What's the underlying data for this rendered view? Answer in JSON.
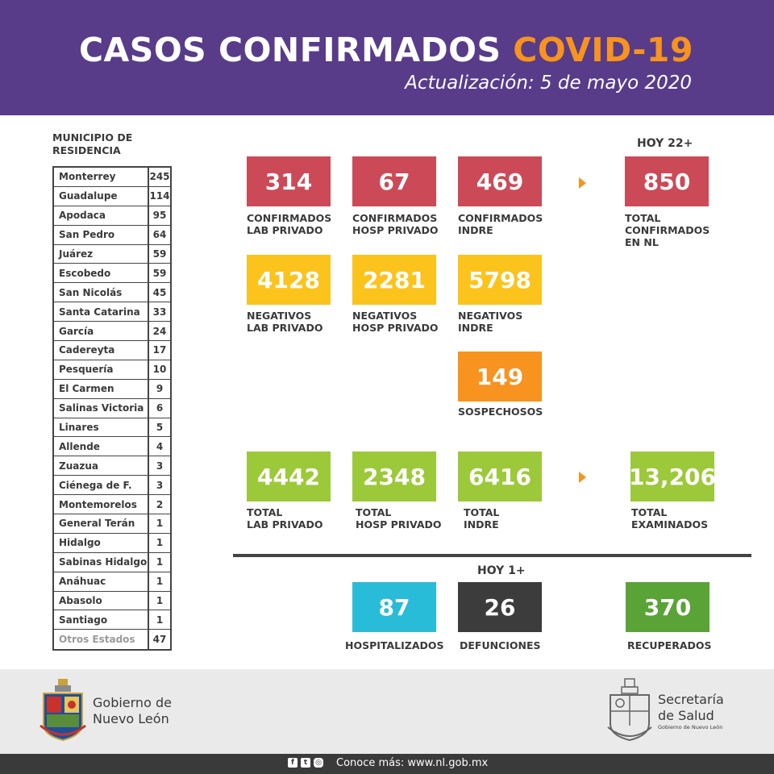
{
  "header": {
    "title_main": "CASOS CONFIRMADOS ",
    "title_accent": "COVID-19",
    "subtitle": "Actualización: 5 de mayo 2020"
  },
  "municipios": {
    "heading": "MUNICIPIO DE RESIDENCIA",
    "rows": [
      {
        "name": "Monterrey",
        "value": "245"
      },
      {
        "name": "Guadalupe",
        "value": "114"
      },
      {
        "name": "Apodaca",
        "value": "95"
      },
      {
        "name": "San Pedro",
        "value": "64"
      },
      {
        "name": "Juárez",
        "value": "59"
      },
      {
        "name": "Escobedo",
        "value": "59"
      },
      {
        "name": "San Nicolás",
        "value": "45"
      },
      {
        "name": "Santa Catarina",
        "value": "33"
      },
      {
        "name": "García",
        "value": "24"
      },
      {
        "name": "Cadereyta",
        "value": "17"
      },
      {
        "name": "Pesquería",
        "value": "10"
      },
      {
        "name": "El Carmen",
        "value": "9"
      },
      {
        "name": "Salinas Victoria",
        "value": "6"
      },
      {
        "name": "Linares",
        "value": "5"
      },
      {
        "name": "Allende",
        "value": "4"
      },
      {
        "name": "Zuazua",
        "value": "3"
      },
      {
        "name": "Ciénega de F.",
        "value": "3"
      },
      {
        "name": "Montemorelos",
        "value": "2"
      },
      {
        "name": "General Terán",
        "value": "1"
      },
      {
        "name": "Hidalgo",
        "value": "1"
      },
      {
        "name": "Sabinas Hidalgo",
        "value": "1"
      },
      {
        "name": "Anáhuac",
        "value": "1"
      },
      {
        "name": "Abasolo",
        "value": "1"
      },
      {
        "name": "Santiago",
        "value": "1"
      },
      {
        "name": "Otros Estados",
        "value": "47"
      }
    ]
  },
  "stats": {
    "hoy_22": "HOY 22+",
    "hoy_1": "HOY 1+",
    "confirmados_lab": {
      "value": "314",
      "label1": "CONFIRMADOS",
      "label2": "LAB PRIVADO"
    },
    "confirmados_hosp": {
      "value": "67",
      "label1": "CONFIRMADOS",
      "label2": "HOSP PRIVADO"
    },
    "confirmados_indre": {
      "value": "469",
      "label1": "CONFIRMADOS",
      "label2": "INDRE"
    },
    "total_confirmados": {
      "value": "850",
      "label1": "TOTAL",
      "label2": "CONFIRMADOS",
      "label3": "EN NL"
    },
    "negativos_lab": {
      "value": "4128",
      "label1": "NEGATIVOS",
      "label2": "LAB PRIVADO"
    },
    "negativos_hosp": {
      "value": "2281",
      "label1": "NEGATIVOS",
      "label2": "HOSP PRIVADO"
    },
    "negativos_indre": {
      "value": "5798",
      "label1": "NEGATIVOS",
      "label2": "INDRE"
    },
    "sospechosos": {
      "value": "149",
      "label1": "SOSPECHOSOS"
    },
    "total_lab": {
      "value": "4442",
      "label1": "TOTAL",
      "label2": "LAB PRIVADO"
    },
    "total_hosp": {
      "value": "2348",
      "label1": "TOTAL",
      "label2": "HOSP PRIVADO"
    },
    "total_indre": {
      "value": "6416",
      "label1": "TOTAL",
      "label2": "INDRE"
    },
    "total_examinados": {
      "value": "13,206",
      "label1": "TOTAL",
      "label2": "EXAMINADOS"
    },
    "hospitalizados": {
      "value": "87",
      "label1": "HOSPITALIZADOS"
    },
    "defunciones": {
      "value": "26",
      "label1": "DEFUNCIONES"
    },
    "recuperados": {
      "value": "370",
      "label1": "RECUPERADOS"
    }
  },
  "footer": {
    "gov_line1": "Gobierno de",
    "gov_line2": "Nuevo León",
    "salud_line1": "Secretaría",
    "salud_line2": "de Salud",
    "salud_small": "Gobierno de Nuevo León",
    "social_icons": [
      "facebook-icon",
      "twitter-icon",
      "instagram-icon"
    ],
    "more_text": "Conoce más: www.nl.gob.mx"
  }
}
